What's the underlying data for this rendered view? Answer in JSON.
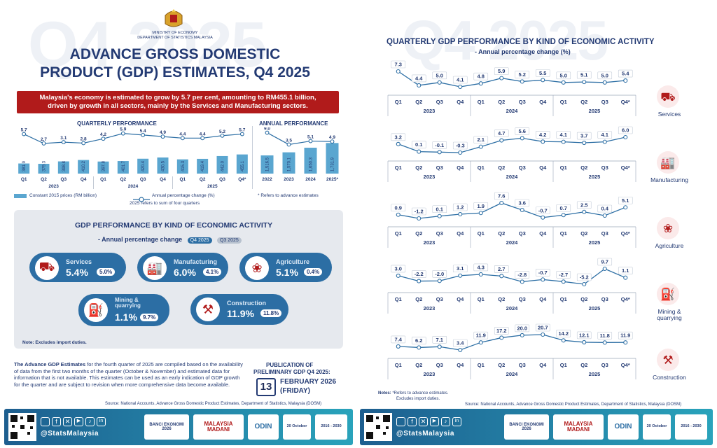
{
  "header": {
    "ministry": "MINISTRY OF ECONOMY",
    "department": "DEPARTMENT OF STATISTICS MALAYSIA",
    "title_line1": "ADVANCE GROSS DOMESTIC",
    "title_line2": "PRODUCT (GDP) ESTIMATES, Q4 2025",
    "watermark": "Q4 2025"
  },
  "banner": {
    "line1": "Malaysia's economy is estimated to grow by 5.7 per cent, amounting to RM455.1 billion,",
    "line2": "driven by growth in all sectors, mainly by the Services and Manufacturing sectors."
  },
  "colors": {
    "navy": "#233a73",
    "bar": "#5aa6d0",
    "line": "#2c6ea4",
    "red": "#b11b1b",
    "grey": "#e6e9ee"
  },
  "quarterly_section": {
    "title": "QUARTERLY PERFORMANCE",
    "legend_bar": "Constant 2015 prices (RM billion)",
    "legend_line": "Annual percentage change (%)",
    "note": "2025 refers to sum of four quarters"
  },
  "annual_section": {
    "title": "ANNUAL PERFORMANCE",
    "note": "* Refers to advance estimates"
  },
  "activity_section": {
    "title": "GDP PERFORMANCE BY KIND OF ECONOMIC ACTIVITY",
    "subtitle": "- Annual percentage change",
    "chip_current": "Q4 2025",
    "chip_previous": "Q3 2025",
    "note": "Note: Excludes import duties.",
    "sectors": [
      {
        "name": "Services",
        "value": "5.4%",
        "previous": "5.0%",
        "icon": "services-icon"
      },
      {
        "name": "Manufacturing",
        "value": "6.0%",
        "previous": "4.1%",
        "icon": "factory-icon"
      },
      {
        "name": "Agriculture",
        "value": "5.1%",
        "previous": "0.4%",
        "icon": "palm-icon"
      },
      {
        "name": "Mining & quarrying",
        "value": "1.1%",
        "previous": "9.7%",
        "icon": "oil-rig-icon"
      },
      {
        "name": "Construction",
        "value": "11.9%",
        "previous": "11.8%",
        "icon": "crane-icon"
      }
    ]
  },
  "description": {
    "bold": "The Advance GDP Estimates",
    "text": " for the fourth quarter of 2025 are compiled based on the availability of data from the first two months of the quarter (October & November) and estimated data for information that is not available. This estimates can be used as an early indication of GDP growth for the quarter and are subject to revision when more comprehensive data become available."
  },
  "publication": {
    "title_line1": "PUBLICATION OF",
    "title_line2": "PRELIMINARY GDP Q4 2025:",
    "day": "13",
    "date": "FEBRUARY 2026",
    "weekday": "(FRIDAY)"
  },
  "source_left": "Source: National Accounts, Advance Gross Domestic Product Estimates, Department of Statistics, Malaysia (DOSM)",
  "right_panel": {
    "title": "QUARTERLY GDP PERFORMANCE BY KIND OF ECONOMIC ACTIVITY",
    "subtitle": "- Annual percentage change (%)",
    "notes_label": "Notes:",
    "note1": "*Refers to advance estimates.",
    "note2": "Excludes import duties.",
    "source": "Source: National Accounts, Advance Gross Domestic Product Estimates, Department of Statistics, Malaysia (DOSM)"
  },
  "footer": {
    "handle": "@StatsMalaysia",
    "logos": [
      "BANCI EKONOMI 2026",
      "MALAYSIA MADANI",
      "ODIN",
      "20 October",
      "2016 - 2030"
    ]
  },
  "chart_data": [
    {
      "type": "bar",
      "id": "quarterly",
      "categories": [
        "Q1",
        "Q2",
        "Q3",
        "Q4",
        "Q1",
        "Q2",
        "Q3",
        "Q4",
        "Q1",
        "Q2",
        "Q3",
        "Q4*"
      ],
      "years": [
        "2023",
        "2024",
        "2025"
      ],
      "series": [
        {
          "name": "Constant 2015 prices (RM billion)",
          "values": [
            381.9,
            379.3,
            398.8,
            410.2,
            397.8,
            401.7,
            420.4,
            430.5,
            415.3,
            419.4,
            442.0,
            455.1
          ],
          "labels": [
            "381.9",
            "379.3",
            "398.8",
            "410.2",
            "397.8",
            "401.7",
            "420.4",
            "430.5",
            "415.3",
            "419.4",
            "442.0",
            "455.1"
          ]
        },
        {
          "name": "Annual percentage change (%)",
          "values": [
            5.7,
            2.7,
            3.1,
            2.8,
            4.2,
            5.9,
            5.4,
            4.9,
            4.4,
            4.4,
            5.2,
            5.7
          ],
          "labels": [
            "5.7",
            "2.7",
            "3.1",
            "2.8",
            "4.2",
            "5.9",
            "5.4",
            "4.9",
            "4.4",
            "4.4",
            "5.2",
            "5.7"
          ]
        }
      ]
    },
    {
      "type": "bar",
      "id": "annual",
      "categories": [
        "2022",
        "2023",
        "2024",
        "2025*"
      ],
      "series": [
        {
          "name": "Constant 2015 prices (RM billion)",
          "values": [
            1516.5,
            1570.1,
            1650.3,
            1731.9
          ],
          "labels": [
            "1,516.5",
            "1,570.1",
            "1,650.3",
            "1,731.9"
          ]
        },
        {
          "name": "Annual percentage change (%)",
          "values": [
            9.0,
            3.5,
            5.1,
            4.9
          ],
          "labels": [
            "9.0",
            "3.5",
            "5.1",
            "4.9"
          ]
        }
      ]
    },
    {
      "type": "line",
      "id": "sector-lines",
      "categories": [
        "Q1",
        "Q2",
        "Q3",
        "Q4",
        "Q1",
        "Q2",
        "Q3",
        "Q4",
        "Q1",
        "Q2",
        "Q3",
        "Q4*"
      ],
      "years": [
        "2023",
        "2024",
        "2025"
      ],
      "series": [
        {
          "name": "Services",
          "values": [
            7.3,
            4.4,
            5.0,
            4.1,
            4.8,
            5.9,
            5.2,
            5.5,
            5.0,
            5.1,
            5.0,
            5.4
          ],
          "labels": [
            "7.3",
            "4.4",
            "5.0",
            "4.1",
            "4.8",
            "5.9",
            "5.2",
            "5.5",
            "5.0",
            "5.1",
            "5.0",
            "5.4"
          ]
        },
        {
          "name": "Manufacturing",
          "values": [
            3.2,
            0.1,
            -0.1,
            -0.3,
            2.1,
            4.7,
            5.6,
            4.2,
            4.1,
            3.7,
            4.1,
            6.0
          ],
          "labels": [
            "3.2",
            "0.1",
            "-0.1",
            "-0.3",
            "2.1",
            "4.7",
            "5.6",
            "4.2",
            "4.1",
            "3.7",
            "4.1",
            "6.0"
          ]
        },
        {
          "name": "Agriculture",
          "values": [
            0.9,
            -1.2,
            0.1,
            1.2,
            1.9,
            7.6,
            3.6,
            -0.7,
            0.7,
            2.5,
            0.4,
            5.1
          ],
          "labels": [
            "0.9",
            "-1.2",
            "0.1",
            "1.2",
            "1.9",
            "7.6",
            "3.6",
            "-0.7",
            "0.7",
            "2.5",
            "0.4",
            "5.1"
          ]
        },
        {
          "name": "Mining & quarrying",
          "values": [
            3.0,
            -2.2,
            -2.0,
            3.1,
            4.3,
            2.7,
            -2.8,
            -0.7,
            -2.7,
            -5.2,
            9.7,
            1.1
          ],
          "labels": [
            "3.0",
            "-2.2",
            "-2.0",
            "3.1",
            "4.3",
            "2.7",
            "-2.8",
            "-0.7",
            "-2.7",
            "-5.2",
            "9.7",
            "1.1"
          ]
        },
        {
          "name": "Construction",
          "values": [
            7.4,
            6.2,
            7.1,
            3.4,
            11.9,
            17.2,
            20.0,
            20.7,
            14.2,
            12.1,
            11.8,
            11.9
          ],
          "labels": [
            "7.4",
            "6.2",
            "7.1",
            "3.4",
            "11.9",
            "17.2",
            "20.0",
            "20.7",
            "14.2",
            "12.1",
            "11.8",
            "11.9"
          ]
        }
      ]
    }
  ]
}
